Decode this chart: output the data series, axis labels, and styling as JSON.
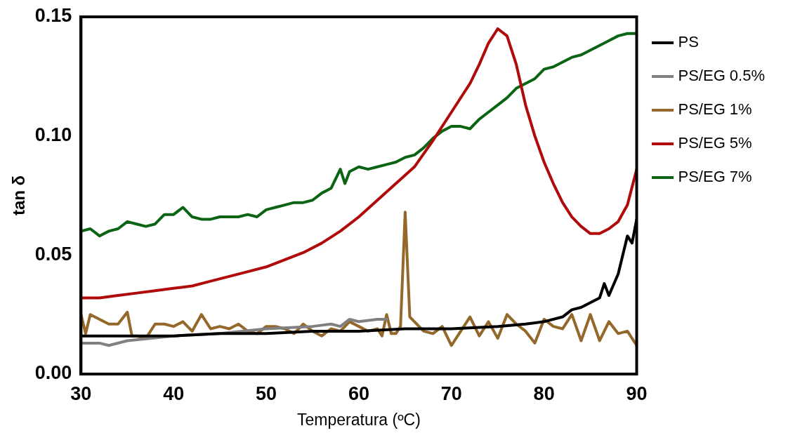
{
  "chart_data": {
    "type": "line",
    "xlabel": "Temperatura (ºC)",
    "ylabel": "tan δ",
    "xlim": [
      30,
      90
    ],
    "ylim": [
      0,
      0.15
    ],
    "xticks": [
      30,
      40,
      50,
      60,
      70,
      80,
      90
    ],
    "yticks": [
      {
        "value": 0,
        "label": "0.00"
      },
      {
        "value": 0.05,
        "label": "0.05"
      },
      {
        "value": 0.1,
        "label": "0.10"
      },
      {
        "value": 0.15,
        "label": "0.15"
      }
    ],
    "grid": false,
    "legend": "right",
    "marker": "none",
    "line_style": "solid",
    "series": [
      {
        "name": "PS",
        "color": "#000000",
        "x": [
          30,
          35,
          40,
          45,
          50,
          55,
          60,
          65,
          70,
          75,
          78,
          80,
          82,
          83,
          84,
          85,
          86,
          86.5,
          87,
          88,
          89,
          89.5,
          90
        ],
        "values": [
          0.016,
          0.016,
          0.016,
          0.017,
          0.017,
          0.018,
          0.018,
          0.019,
          0.019,
          0.02,
          0.021,
          0.022,
          0.024,
          0.027,
          0.028,
          0.03,
          0.032,
          0.038,
          0.033,
          0.042,
          0.058,
          0.055,
          0.065
        ]
      },
      {
        "name": "PS/EG 0.5%",
        "color": "#808080",
        "x": [
          30,
          32,
          33,
          35,
          40,
          45,
          50,
          55,
          57,
          58,
          59,
          60,
          62,
          63
        ],
        "values": [
          0.013,
          0.013,
          0.012,
          0.014,
          0.016,
          0.017,
          0.019,
          0.02,
          0.021,
          0.02,
          0.023,
          0.022,
          0.023,
          0.023
        ]
      },
      {
        "name": "PS/EG 1%",
        "color": "#94682a",
        "x": [
          30,
          30.5,
          31,
          32,
          33,
          34,
          35,
          35.5,
          36,
          37,
          38,
          39,
          40,
          41,
          42,
          43,
          44,
          45,
          46,
          47,
          48,
          49,
          50,
          51,
          52,
          53,
          54,
          55,
          56,
          57,
          58,
          59,
          60,
          61,
          62,
          62.5,
          63,
          63.5,
          64,
          64.5,
          65,
          65.5,
          66,
          67,
          68,
          69,
          70,
          71,
          72,
          73,
          74,
          75,
          76,
          77,
          78,
          79,
          80,
          81,
          82,
          83,
          84,
          85,
          86,
          87,
          88,
          89,
          90
        ],
        "values": [
          0.025,
          0.017,
          0.025,
          0.023,
          0.021,
          0.021,
          0.026,
          0.016,
          0.016,
          0.015,
          0.021,
          0.021,
          0.02,
          0.022,
          0.018,
          0.025,
          0.019,
          0.02,
          0.019,
          0.021,
          0.018,
          0.017,
          0.02,
          0.02,
          0.019,
          0.017,
          0.021,
          0.018,
          0.016,
          0.019,
          0.018,
          0.022,
          0.02,
          0.018,
          0.019,
          0.016,
          0.025,
          0.017,
          0.017,
          0.02,
          0.068,
          0.024,
          0.022,
          0.018,
          0.017,
          0.02,
          0.012,
          0.018,
          0.024,
          0.016,
          0.022,
          0.015,
          0.025,
          0.021,
          0.018,
          0.013,
          0.023,
          0.02,
          0.019,
          0.025,
          0.014,
          0.025,
          0.014,
          0.022,
          0.017,
          0.018,
          0.012
        ]
      },
      {
        "name": "PS/EG 5%",
        "color": "#b00a0a",
        "x": [
          30,
          32,
          34,
          36,
          38,
          40,
          42,
          44,
          46,
          48,
          50,
          52,
          54,
          56,
          58,
          60,
          62,
          64,
          66,
          68,
          70,
          72,
          73,
          74,
          75,
          76,
          77,
          78,
          79,
          80,
          81,
          82,
          83,
          84,
          85,
          86,
          87,
          88,
          89,
          90
        ],
        "values": [
          0.032,
          0.032,
          0.033,
          0.034,
          0.035,
          0.036,
          0.037,
          0.039,
          0.041,
          0.043,
          0.045,
          0.048,
          0.051,
          0.055,
          0.06,
          0.066,
          0.073,
          0.08,
          0.087,
          0.098,
          0.11,
          0.122,
          0.13,
          0.139,
          0.145,
          0.142,
          0.13,
          0.113,
          0.1,
          0.089,
          0.08,
          0.072,
          0.066,
          0.062,
          0.059,
          0.059,
          0.061,
          0.064,
          0.071,
          0.086
        ]
      },
      {
        "name": "PS/EG 7%",
        "color": "#0a6414",
        "x": [
          30,
          31,
          32,
          33,
          34,
          35,
          36,
          37,
          38,
          39,
          40,
          41,
          42,
          43,
          44,
          45,
          46,
          47,
          48,
          49,
          50,
          51,
          52,
          53,
          54,
          55,
          56,
          57,
          58,
          58.5,
          59,
          60,
          61,
          62,
          63,
          64,
          65,
          66,
          67,
          68,
          69,
          70,
          71,
          72,
          73,
          74,
          75,
          76,
          77,
          78,
          79,
          80,
          81,
          82,
          83,
          84,
          85,
          86,
          87,
          88,
          89,
          90
        ],
        "values": [
          0.06,
          0.061,
          0.058,
          0.06,
          0.061,
          0.064,
          0.063,
          0.062,
          0.063,
          0.067,
          0.067,
          0.07,
          0.066,
          0.065,
          0.065,
          0.066,
          0.066,
          0.066,
          0.067,
          0.066,
          0.069,
          0.07,
          0.071,
          0.072,
          0.072,
          0.073,
          0.076,
          0.078,
          0.086,
          0.08,
          0.085,
          0.087,
          0.086,
          0.087,
          0.088,
          0.089,
          0.091,
          0.092,
          0.095,
          0.099,
          0.102,
          0.104,
          0.104,
          0.103,
          0.107,
          0.11,
          0.113,
          0.116,
          0.12,
          0.122,
          0.124,
          0.128,
          0.129,
          0.131,
          0.133,
          0.134,
          0.136,
          0.138,
          0.14,
          0.142,
          0.143,
          0.143
        ]
      }
    ]
  }
}
